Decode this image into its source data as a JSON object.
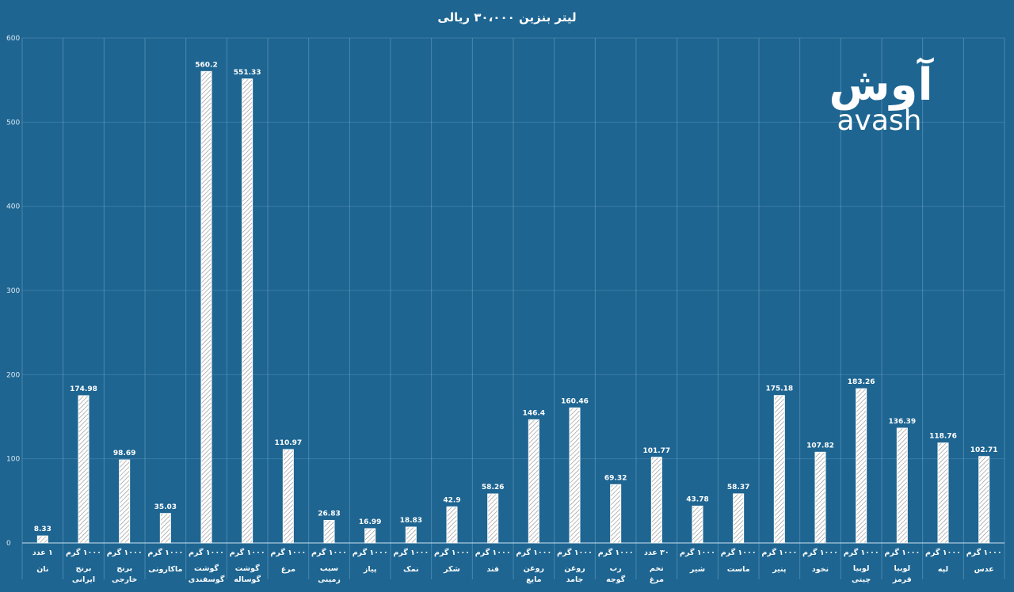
{
  "chart_data": {
    "type": "bar",
    "title": "لیتر بنزین ۳۰،۰۰۰ ریالی",
    "xlabel": "",
    "ylabel": "",
    "ylim": [
      0,
      600
    ],
    "yticks": [
      0,
      100,
      200,
      300,
      400,
      500,
      600
    ],
    "grid": true,
    "legend": "none",
    "categories": [
      {
        "unit": "۱ عدد",
        "name": "نان"
      },
      {
        "unit": "۱۰۰۰ گرم",
        "name": "برنج ایرانی"
      },
      {
        "unit": "۱۰۰۰ گرم",
        "name": "برنج خارجی"
      },
      {
        "unit": "۱۰۰۰ گرم",
        "name": "ماکارونی"
      },
      {
        "unit": "۱۰۰۰ گرم",
        "name": "گوشت گوسفندی"
      },
      {
        "unit": "۱۰۰۰ گرم",
        "name": "گوشت گوساله"
      },
      {
        "unit": "۱۰۰۰ گرم",
        "name": "مرغ"
      },
      {
        "unit": "۱۰۰۰ گرم",
        "name": "سیب زمینی"
      },
      {
        "unit": "۱۰۰۰ گرم",
        "name": "پیاز"
      },
      {
        "unit": "۱۰۰۰ گرم",
        "name": "نمک"
      },
      {
        "unit": "۱۰۰۰ گرم",
        "name": "شکر"
      },
      {
        "unit": "۱۰۰۰ گرم",
        "name": "قند"
      },
      {
        "unit": "۱۰۰۰ گرم",
        "name": "روغن مایع"
      },
      {
        "unit": "۱۰۰۰ گرم",
        "name": "روغن جامد"
      },
      {
        "unit": "۱۰۰۰ گرم",
        "name": "رب گوجه"
      },
      {
        "unit": "۳۰ عدد",
        "name": "تخم مرغ"
      },
      {
        "unit": "۱۰۰۰ گرم",
        "name": "شیر"
      },
      {
        "unit": "۱۰۰۰ گرم",
        "name": "ماست"
      },
      {
        "unit": "۱۰۰۰ گرم",
        "name": "پنیر"
      },
      {
        "unit": "۱۰۰۰ گرم",
        "name": "نخود"
      },
      {
        "unit": "۱۰۰۰ گرم",
        "name": "لوبیا چیتی"
      },
      {
        "unit": "۱۰۰۰ گرم",
        "name": "لوبیا قرمز"
      },
      {
        "unit": "۱۰۰۰ گرم",
        "name": "لپه"
      },
      {
        "unit": "۱۰۰۰ گرم",
        "name": "عدس"
      }
    ],
    "values": [
      8.33,
      174.98,
      98.69,
      35.03,
      560.2,
      551.33,
      110.97,
      26.83,
      16.99,
      18.83,
      42.9,
      58.26,
      146.4,
      160.46,
      69.32,
      101.77,
      43.78,
      58.37,
      175.18,
      107.82,
      183.26,
      136.39,
      118.76,
      102.71
    ],
    "value_labels": [
      "8.33",
      "174.98",
      "98.69",
      "35.03",
      "560.2",
      "551.33",
      "110.97",
      "26.83",
      "16.99",
      "18.83",
      "42.9",
      "58.26",
      "146.4",
      "160.46",
      "69.32",
      "101.77",
      "43.78",
      "58.37",
      "175.18",
      "107.82",
      "183.26",
      "136.39",
      "118.76",
      "102.71"
    ]
  },
  "logo": {
    "fa": "آوش",
    "en": "avash"
  },
  "colors": {
    "background": "#1e6591",
    "bar_fill": "#ffffff",
    "hatch": "#8a8a8a",
    "text": "#ffffff"
  }
}
